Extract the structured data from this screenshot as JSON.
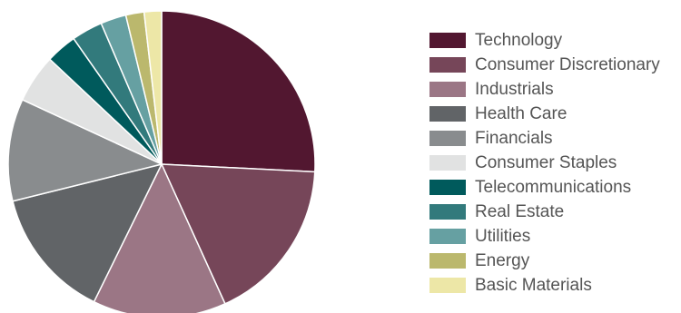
{
  "chart_data": {
    "type": "pie",
    "categories": [
      "Technology",
      "Consumer Discretionary",
      "Industrials",
      "Health Care",
      "Financials",
      "Consumer Staples",
      "Telecommunications",
      "Real Estate",
      "Utilities",
      "Energy",
      "Basic Materials"
    ],
    "values": [
      26.8,
      18.1,
      14.6,
      14.4,
      11.2,
      5.3,
      3.4,
      3.4,
      2.8,
      2.0,
      1.9
    ],
    "colors": [
      "#521730",
      "#764659",
      "#9b7685",
      "#616467",
      "#898c8e",
      "#e1e2e2",
      "#005a5c",
      "#327a7c",
      "#66a0a2",
      "#bbb86d",
      "#ede7a7"
    ],
    "start": "12 o'clock",
    "direction": "clockwise",
    "legend_position": "right"
  }
}
